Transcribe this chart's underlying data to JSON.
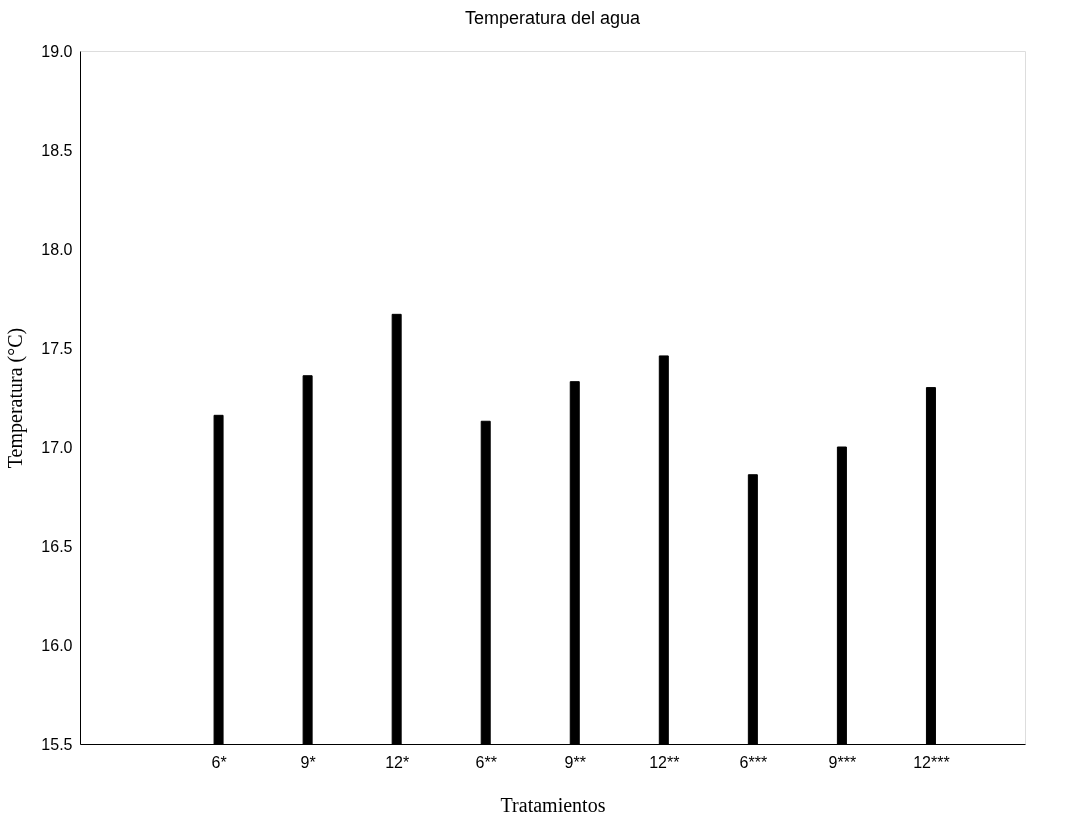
{
  "chart_data": {
    "type": "bar",
    "title": "Temperatura del agua",
    "xlabel": "Tratamientos",
    "ylabel": "Temperatura (°C)",
    "categories": [
      "6*",
      "9*",
      "12*",
      "6**",
      "9**",
      "12**",
      "6***",
      "9***",
      "12***"
    ],
    "values": [
      17.16,
      17.36,
      17.67,
      17.13,
      17.33,
      17.46,
      16.86,
      17.0,
      17.3
    ],
    "color": "#000000",
    "ylim": [
      15.5,
      19.0
    ],
    "yticks": [
      15.5,
      {
        "value": 16,
        "label": "16.0"
      },
      16.5,
      {
        "value": 17,
        "label": "17.0"
      },
      17.5,
      {
        "value": 18,
        "label": "18.0"
      },
      18.5,
      {
        "value": 19,
        "label": "19.0"
      }
    ],
    "grid": false
  }
}
